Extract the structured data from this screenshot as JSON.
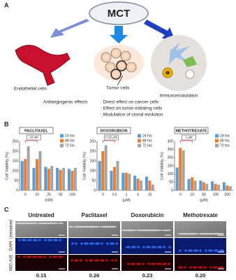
{
  "panel_a": {
    "letter": "A",
    "center": "MCT",
    "left_label": "Endothelial cells",
    "middle_label": "Tumor cells",
    "right_label": "Immunomodulation",
    "effects_heading": "Antiangiogenic effects",
    "effects": [
      ": Direct effect on cancer cells",
      ": Effect on tumor-initiating cells",
      ": Modulation of clonal evolution"
    ]
  },
  "panel_b": {
    "letter": "B"
  },
  "chart_data": [
    {
      "type": "bar",
      "title": "PACLITAXEL",
      "y_label": "Cell Viability (%)",
      "x_label": "(nM)",
      "annotation": "10 nM",
      "categories": [
        "0",
        "10",
        "25",
        "50",
        "100"
      ],
      "ylim": [
        0,
        250
      ],
      "yticks": [
        0,
        50,
        100,
        150,
        200,
        250
      ],
      "legend": "top-right",
      "series": [
        {
          "name": "24 hrs",
          "color": "#5b9bd5",
          "values": [
            150,
            115,
            120,
            115,
            110
          ]
        },
        {
          "name": "48 hrs",
          "color": "#ed7d31",
          "values": [
            160,
            160,
            110,
            105,
            100
          ]
        },
        {
          "name": "72 hrs",
          "color": "#a5a5a5",
          "values": [
            225,
            200,
            125,
            115,
            115
          ]
        }
      ]
    },
    {
      "type": "bar",
      "title": "DOXORUBICIN",
      "y_label": "Cell Viability (%)",
      "x_label": "(μM)",
      "annotation": "0.25 μM",
      "categories": [
        "0",
        "0.5",
        "1",
        "5",
        "10"
      ],
      "ylim": [
        0,
        250
      ],
      "yticks": [
        0,
        50,
        100,
        150,
        200,
        250
      ],
      "legend": "top-right",
      "series": [
        {
          "name": "24 hrs",
          "color": "#5b9bd5",
          "values": [
            150,
            100,
            90,
            75,
            70
          ]
        },
        {
          "name": "48 hrs",
          "color": "#ed7d31",
          "values": [
            200,
            120,
            90,
            60,
            50
          ]
        },
        {
          "name": "72 hrs",
          "color": "#a5a5a5",
          "values": [
            230,
            150,
            85,
            50,
            30
          ]
        }
      ]
    },
    {
      "type": "bar",
      "title": "METHOTREXATE",
      "y_label": "Cell Viability (%)",
      "x_label": "(μM)",
      "annotation": "1 μM",
      "categories": [
        "0",
        "10",
        "50",
        "100",
        "200"
      ],
      "ylim": [
        0,
        300
      ],
      "yticks": [
        0,
        50,
        100,
        150,
        200,
        250,
        300
      ],
      "legend": "top-right",
      "series": [
        {
          "name": "24 hrs",
          "color": "#5b9bd5",
          "values": [
            140,
            70,
            60,
            55,
            50
          ]
        },
        {
          "name": "48 hrs",
          "color": "#ed7d31",
          "values": [
            260,
            80,
            50,
            40,
            30
          ]
        },
        {
          "name": "72 hrs",
          "color": "#a5a5a5",
          "values": [
            245,
            60,
            40,
            35,
            25
          ]
        }
      ]
    }
  ],
  "panel_c": {
    "letter": "C",
    "columns": [
      "Untreated",
      "Paclitaxel",
      "Doxorubicin",
      "Methotrexate"
    ],
    "rows": [
      "Unstained",
      "DAPI",
      "MIC-A/B"
    ],
    "values": [
      "0.15",
      "0.26",
      "0.23",
      "0.20"
    ]
  }
}
